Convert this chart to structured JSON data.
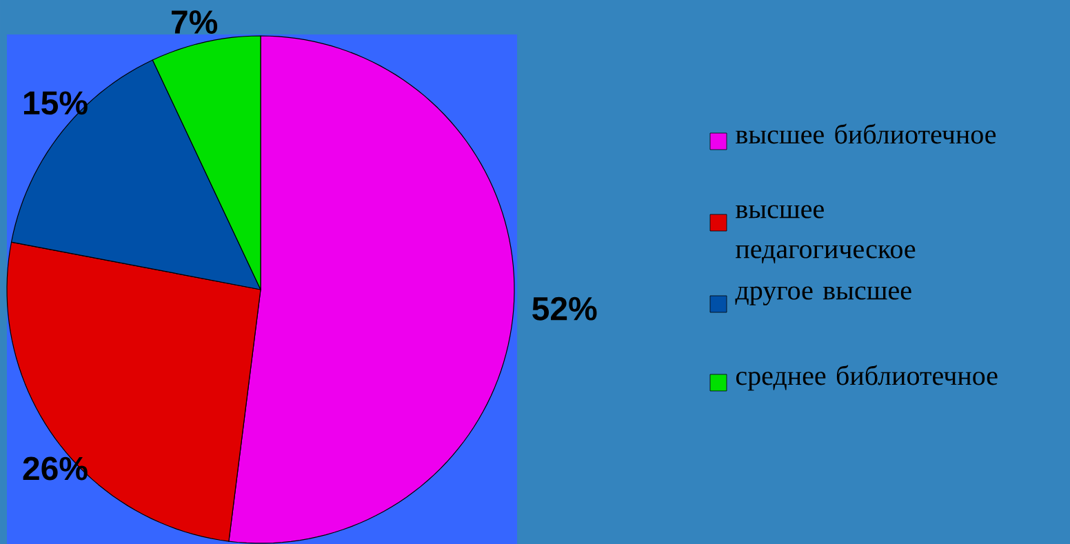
{
  "chart_data": {
    "type": "pie",
    "categories": [
      "высшее библиотечное",
      "высшее педагогическое",
      "другое высшее",
      "среднее библиотечное"
    ],
    "values": [
      52,
      26,
      15,
      7
    ],
    "colors": [
      "#ee00ee",
      "#e00000",
      "#0050a8",
      "#00e000"
    ],
    "value_labels": [
      "52%",
      "26%",
      "15%",
      "7%"
    ],
    "legend": "right"
  }
}
